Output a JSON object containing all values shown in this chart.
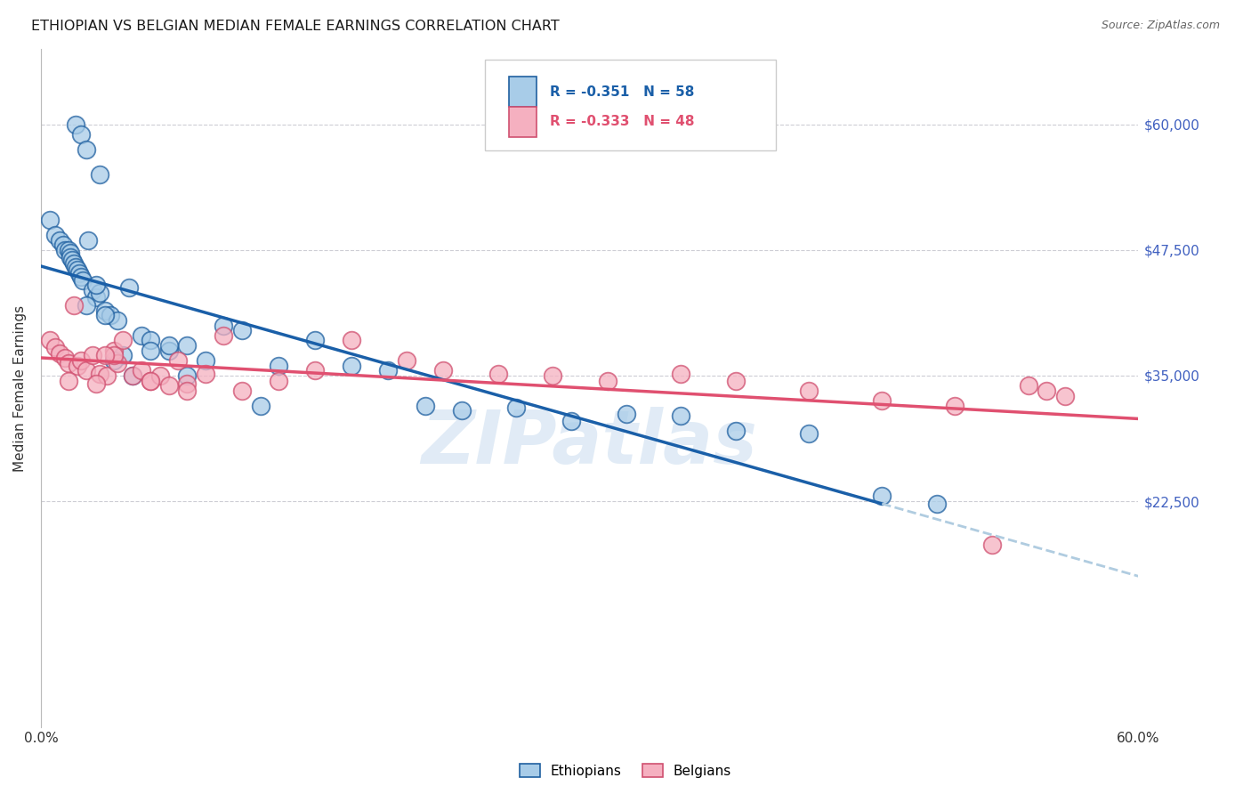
{
  "title": "ETHIOPIAN VS BELGIAN MEDIAN FEMALE EARNINGS CORRELATION CHART",
  "source": "Source: ZipAtlas.com",
  "ylabel": "Median Female Earnings",
  "y_min": 0,
  "y_max": 67500,
  "x_min": 0.0,
  "x_max": 0.6,
  "blue_fill": "#a8cce8",
  "blue_edge": "#2060a0",
  "blue_line": "#1a5fa8",
  "pink_fill": "#f5b0c0",
  "pink_edge": "#d05070",
  "pink_line": "#e05070",
  "dashed_color": "#b0cce0",
  "watermark_text": "ZIPatlas",
  "watermark_color": "#cddff0",
  "grid_color": "#c8c8d0",
  "title_color": "#1a1a1a",
  "source_color": "#666666",
  "right_label_color": "#4060c0",
  "bottom_label_color": "#333333",
  "legend_r1": "-0.351",
  "legend_n1": "58",
  "legend_r2": "-0.333",
  "legend_n2": "48",
  "right_yticks": [
    22500,
    35000,
    47500,
    60000
  ],
  "right_ytick_labels": [
    "$22,500",
    "$35,000",
    "$47,500",
    "$60,000"
  ],
  "ethiopians_x": [
    0.019,
    0.022,
    0.025,
    0.032,
    0.005,
    0.008,
    0.01,
    0.012,
    0.013,
    0.015,
    0.016,
    0.016,
    0.017,
    0.018,
    0.019,
    0.02,
    0.021,
    0.022,
    0.023,
    0.026,
    0.028,
    0.03,
    0.032,
    0.035,
    0.038,
    0.042,
    0.048,
    0.055,
    0.06,
    0.07,
    0.08,
    0.09,
    0.1,
    0.11,
    0.13,
    0.15,
    0.17,
    0.19,
    0.21,
    0.23,
    0.26,
    0.29,
    0.32,
    0.35,
    0.38,
    0.42,
    0.46,
    0.49,
    0.035,
    0.045,
    0.025,
    0.03,
    0.04,
    0.05,
    0.06,
    0.07,
    0.08,
    0.12
  ],
  "ethiopians_y": [
    60000,
    59000,
    57500,
    55000,
    50500,
    49000,
    48500,
    48000,
    47500,
    47500,
    47200,
    46800,
    46500,
    46200,
    45800,
    45500,
    45200,
    44800,
    44500,
    48500,
    43500,
    42800,
    43200,
    41500,
    41000,
    40500,
    43800,
    39000,
    38500,
    37500,
    38000,
    36500,
    40000,
    39500,
    36000,
    38500,
    36000,
    35500,
    32000,
    31500,
    31800,
    30500,
    31200,
    31000,
    29500,
    29200,
    23000,
    22200,
    41000,
    37000,
    42000,
    44000,
    36500,
    35000,
    37500,
    38000,
    35000,
    32000
  ],
  "belgians_x": [
    0.005,
    0.008,
    0.01,
    0.013,
    0.015,
    0.018,
    0.02,
    0.022,
    0.025,
    0.028,
    0.032,
    0.036,
    0.04,
    0.042,
    0.045,
    0.05,
    0.055,
    0.06,
    0.065,
    0.075,
    0.08,
    0.09,
    0.1,
    0.11,
    0.13,
    0.15,
    0.17,
    0.2,
    0.22,
    0.25,
    0.28,
    0.31,
    0.35,
    0.38,
    0.42,
    0.46,
    0.5,
    0.52,
    0.54,
    0.56,
    0.015,
    0.03,
    0.04,
    0.06,
    0.08,
    0.55,
    0.035,
    0.07
  ],
  "belgians_y": [
    38500,
    37800,
    37200,
    36800,
    36200,
    42000,
    36000,
    36500,
    35500,
    37000,
    35200,
    35000,
    37500,
    36200,
    38500,
    35000,
    35500,
    34500,
    35000,
    36500,
    34200,
    35200,
    39000,
    33500,
    34500,
    35500,
    38500,
    36500,
    35500,
    35200,
    35000,
    34500,
    35200,
    34500,
    33500,
    32500,
    32000,
    18200,
    34000,
    33000,
    34500,
    34200,
    37000,
    34500,
    33500,
    33500,
    37000,
    34000
  ]
}
